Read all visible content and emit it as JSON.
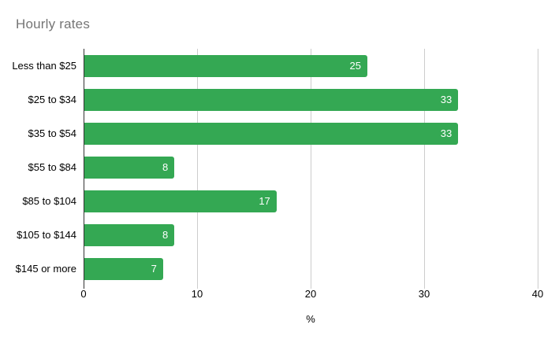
{
  "chart_data": {
    "type": "bar",
    "orientation": "horizontal",
    "title": "Hourly rates",
    "categories": [
      "Less than $25",
      "$25 to $34",
      "$35 to $54",
      "$55 to $84",
      "$85 to $104",
      "$105 to $144",
      "$145 or more"
    ],
    "values": [
      25,
      33,
      33,
      8,
      17,
      8,
      7
    ],
    "xlabel": "%",
    "ylabel": "",
    "xlim": [
      0,
      40
    ],
    "xticks": [
      0,
      10,
      20,
      30,
      40
    ],
    "grid": true,
    "legend": "none",
    "value_labels": "inside-end",
    "colors": {
      "bar": "#34a853",
      "bar_value_text": "#ffffff",
      "title_text": "#757575",
      "label_text": "#000000",
      "gridline": "#cccccc",
      "axis_line": "#333333",
      "background": "#ffffff"
    }
  }
}
